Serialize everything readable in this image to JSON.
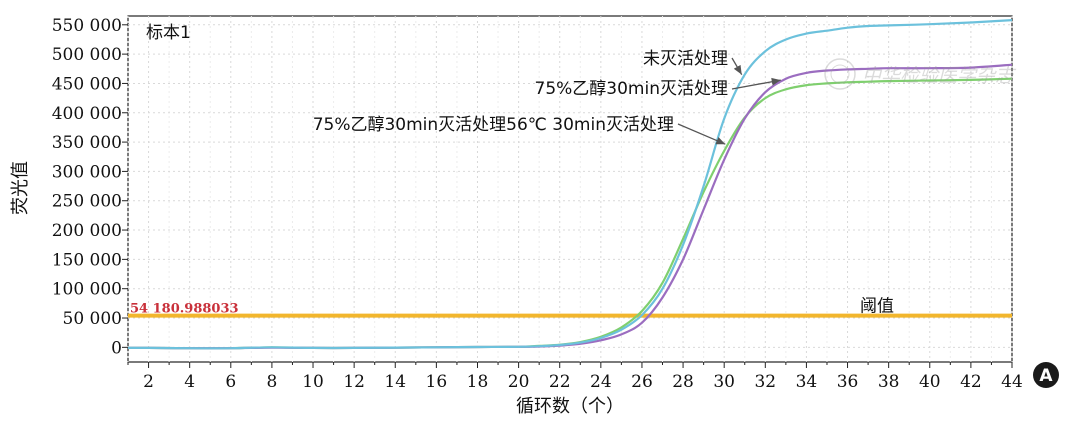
{
  "chart_data": {
    "type": "line",
    "sample_label": "标本1",
    "xlabel": "循环数（个）",
    "ylabel": "荧光值",
    "xlim": [
      1,
      44
    ],
    "ylim": [
      -25000,
      565000
    ],
    "x_ticks": [
      2,
      4,
      6,
      8,
      10,
      12,
      14,
      16,
      18,
      20,
      22,
      24,
      26,
      28,
      30,
      32,
      34,
      36,
      38,
      40,
      42,
      44
    ],
    "y_ticks": [
      {
        "value": 550000,
        "label": "550 000"
      },
      {
        "value": 500000,
        "label": "500 000"
      },
      {
        "value": 450000,
        "label": "450 000"
      },
      {
        "value": 400000,
        "label": "400 000"
      },
      {
        "value": 350000,
        "label": "350 000"
      },
      {
        "value": 300000,
        "label": "300 000"
      },
      {
        "value": 250000,
        "label": "250 000"
      },
      {
        "value": 200000,
        "label": "200 000"
      },
      {
        "value": 150000,
        "label": "150 000"
      },
      {
        "value": 100000,
        "label": "100 000"
      },
      {
        "value": 50000,
        "label": "50 000"
      },
      {
        "value": 0,
        "label": "0"
      }
    ],
    "grid": true,
    "x": [
      1,
      2,
      4,
      6,
      8,
      10,
      12,
      14,
      16,
      18,
      20,
      21,
      22,
      23,
      24,
      25,
      26,
      27,
      28,
      29,
      30,
      31,
      32,
      33,
      34,
      35,
      36,
      37,
      38,
      40,
      42,
      44
    ],
    "series": [
      {
        "name": "未灭活处理",
        "color": "#6cc1dc",
        "values": [
          -1000,
          -1000,
          -1500,
          -1500,
          0,
          -1000,
          -1000,
          -500,
          0,
          500,
          1000,
          2000,
          4000,
          8000,
          16000,
          30000,
          55000,
          100000,
          175000,
          275000,
          390000,
          465000,
          505000,
          525000,
          535000,
          540000,
          545000,
          548000,
          549000,
          551000,
          554000,
          558000
        ]
      },
      {
        "name": "75%乙醇30min灭活处理",
        "color": "#9b6dc0",
        "values": [
          -1000,
          -1000,
          -1500,
          -1500,
          -500,
          -1000,
          -1000,
          -500,
          0,
          500,
          1000,
          1500,
          3000,
          6000,
          12000,
          22000,
          42000,
          85000,
          150000,
          235000,
          320000,
          390000,
          435000,
          458000,
          468000,
          472000,
          474000,
          475000,
          476000,
          476000,
          477000,
          482000
        ]
      },
      {
        "name": "75%乙醇30min灭活处理56℃ 30min灭活处理",
        "color": "#7fcf6e",
        "values": [
          -1000,
          -1000,
          -1500,
          -1500,
          0,
          -1000,
          -1000,
          -500,
          0,
          500,
          1000,
          2500,
          4500,
          9000,
          18000,
          34000,
          62000,
          110000,
          185000,
          265000,
          335000,
          392000,
          425000,
          440000,
          447000,
          450000,
          452000,
          453000,
          454000,
          455000,
          456000,
          458000
        ]
      }
    ],
    "threshold": {
      "label": "阈值",
      "value": 54180.988033,
      "value_label": "54 180.988033",
      "color": "#f2b62d",
      "value_color": "#c9303a"
    },
    "panel_label": "A",
    "watermark": "中华检验医学杂志"
  }
}
